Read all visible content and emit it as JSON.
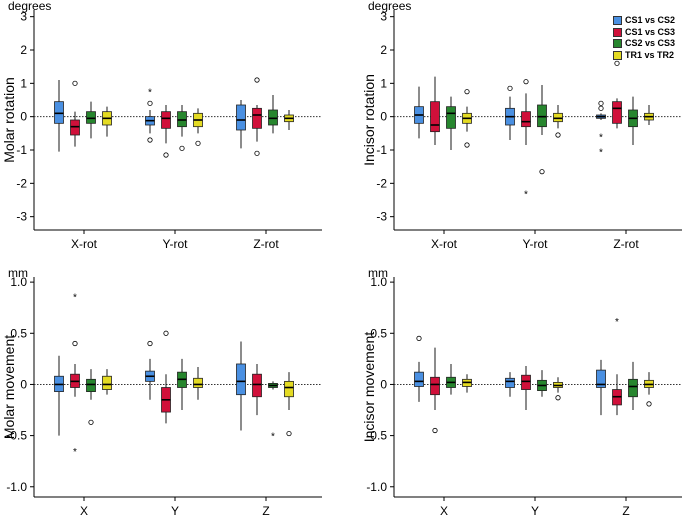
{
  "legend": [
    {
      "name": "CS1 vs CS2",
      "color": "#4a90e2"
    },
    {
      "name": "CS1 vs CS3",
      "color": "#d0103a"
    },
    {
      "name": "CS2 vs CS3",
      "color": "#27862e"
    },
    {
      "name": "TR1 vs TR2",
      "color": "#e4db23"
    }
  ],
  "chart_data": [
    {
      "type": "boxplot",
      "id": "molar-rotation",
      "unit": "degrees",
      "ylabel": "Molar rotation",
      "ylim": [
        -3.4,
        3.2
      ],
      "yticks": [
        -3,
        -2,
        -1,
        0,
        1,
        2,
        3
      ],
      "ytick_labels": [
        "-3",
        "-2",
        "-1",
        "0",
        "1",
        "2",
        "3"
      ],
      "categories": [
        "X-rot",
        "Y-rot",
        "Z-rot"
      ],
      "series": [
        {
          "name": "CS1 vs CS2",
          "boxes": [
            {
              "min": -1.05,
              "q1": -0.2,
              "median": 0.1,
              "q3": 0.45,
              "max": 1.1,
              "outliers": []
            },
            {
              "min": -0.5,
              "q1": -0.25,
              "median": -0.12,
              "q3": 0.0,
              "max": 0.2,
              "outliers": [
                {
                  "v": -0.7,
                  "s": "o"
                },
                {
                  "v": 0.4,
                  "s": "o"
                },
                {
                  "v": 0.75,
                  "s": "*"
                }
              ]
            },
            {
              "min": -0.95,
              "q1": -0.4,
              "median": -0.1,
              "q3": 0.35,
              "max": 0.5,
              "outliers": []
            }
          ]
        },
        {
          "name": "CS1 vs CS3",
          "boxes": [
            {
              "min": -0.9,
              "q1": -0.55,
              "median": -0.3,
              "q3": -0.1,
              "max": 0.15,
              "outliers": [
                {
                  "v": 1.0,
                  "s": "o"
                }
              ]
            },
            {
              "min": -0.8,
              "q1": -0.35,
              "median": -0.05,
              "q3": 0.15,
              "max": 0.35,
              "outliers": [
                {
                  "v": -1.15,
                  "s": "o"
                }
              ]
            },
            {
              "min": -0.75,
              "q1": -0.35,
              "median": 0.05,
              "q3": 0.25,
              "max": 0.35,
              "outliers": [
                {
                  "v": -1.1,
                  "s": "o"
                },
                {
                  "v": 1.1,
                  "s": "o"
                }
              ]
            }
          ]
        },
        {
          "name": "CS2 vs CS3",
          "boxes": [
            {
              "min": -0.65,
              "q1": -0.2,
              "median": -0.05,
              "q3": 0.15,
              "max": 0.45,
              "outliers": []
            },
            {
              "min": -0.6,
              "q1": -0.3,
              "median": -0.1,
              "q3": 0.15,
              "max": 0.35,
              "outliers": [
                {
                  "v": -0.95,
                  "s": "o"
                }
              ]
            },
            {
              "min": -0.5,
              "q1": -0.25,
              "median": -0.05,
              "q3": 0.2,
              "max": 0.65,
              "outliers": []
            }
          ]
        },
        {
          "name": "TR1 vs TR2",
          "boxes": [
            {
              "min": -0.6,
              "q1": -0.25,
              "median": -0.05,
              "q3": 0.15,
              "max": 0.3,
              "outliers": []
            },
            {
              "min": -0.5,
              "q1": -0.3,
              "median": -0.1,
              "q3": 0.1,
              "max": 0.25,
              "outliers": [
                {
                  "v": -0.8,
                  "s": "o"
                }
              ]
            },
            {
              "min": -0.4,
              "q1": -0.15,
              "median": -0.05,
              "q3": 0.05,
              "max": 0.2,
              "outliers": []
            }
          ]
        }
      ]
    },
    {
      "type": "boxplot",
      "id": "incisor-rotation",
      "unit": "degrees",
      "ylabel": "Incisor rotation",
      "ylim": [
        -3.4,
        3.2
      ],
      "yticks": [
        -3,
        -2,
        -1,
        0,
        1,
        2,
        3
      ],
      "ytick_labels": [
        "-3",
        "-2",
        "-1",
        "0",
        "1",
        "2",
        "3"
      ],
      "categories": [
        "X-rot",
        "Y-rot",
        "Z-rot"
      ],
      "series": [
        {
          "name": "CS1 vs CS2",
          "boxes": [
            {
              "min": -0.65,
              "q1": -0.2,
              "median": 0.05,
              "q3": 0.3,
              "max": 0.9,
              "outliers": []
            },
            {
              "min": -0.7,
              "q1": -0.25,
              "median": 0.0,
              "q3": 0.25,
              "max": 0.6,
              "outliers": [
                {
                  "v": 0.85,
                  "s": "o"
                }
              ]
            },
            {
              "min": -0.1,
              "q1": -0.05,
              "median": 0.0,
              "q3": 0.05,
              "max": 0.1,
              "outliers": [
                {
                  "v": 0.25,
                  "s": "o"
                },
                {
                  "v": 0.4,
                  "s": "o"
                },
                {
                  "v": -0.6,
                  "s": "*"
                },
                {
                  "v": -1.05,
                  "s": "*"
                }
              ]
            }
          ]
        },
        {
          "name": "CS1 vs CS3",
          "boxes": [
            {
              "min": -0.85,
              "q1": -0.45,
              "median": -0.25,
              "q3": 0.45,
              "max": 1.2,
              "outliers": []
            },
            {
              "min": -0.85,
              "q1": -0.3,
              "median": -0.15,
              "q3": 0.15,
              "max": 0.7,
              "outliers": [
                {
                  "v": 1.05,
                  "s": "o"
                },
                {
                  "v": -2.3,
                  "s": "*"
                }
              ]
            },
            {
              "min": -0.35,
              "q1": -0.2,
              "median": 0.25,
              "q3": 0.45,
              "max": 0.55,
              "outliers": [
                {
                  "v": 1.6,
                  "s": "o"
                }
              ]
            }
          ]
        },
        {
          "name": "CS2 vs CS3",
          "boxes": [
            {
              "min": -1.0,
              "q1": -0.35,
              "median": 0.1,
              "q3": 0.3,
              "max": 0.6,
              "outliers": []
            },
            {
              "min": -0.55,
              "q1": -0.3,
              "median": 0.0,
              "q3": 0.35,
              "max": 0.95,
              "outliers": [
                {
                  "v": -1.65,
                  "s": "o"
                }
              ]
            },
            {
              "min": -0.85,
              "q1": -0.3,
              "median": -0.05,
              "q3": 0.2,
              "max": 0.6,
              "outliers": []
            }
          ]
        },
        {
          "name": "TR1 vs TR2",
          "boxes": [
            {
              "min": -0.45,
              "q1": -0.2,
              "median": -0.05,
              "q3": 0.1,
              "max": 0.3,
              "outliers": [
                {
                  "v": 0.75,
                  "s": "o"
                },
                {
                  "v": -0.85,
                  "s": "o"
                }
              ]
            },
            {
              "min": -0.35,
              "q1": -0.15,
              "median": -0.05,
              "q3": 0.1,
              "max": 0.35,
              "outliers": [
                {
                  "v": -0.55,
                  "s": "o"
                }
              ]
            },
            {
              "min": -0.25,
              "q1": -0.1,
              "median": 0.0,
              "q3": 0.1,
              "max": 0.35,
              "outliers": []
            }
          ]
        }
      ]
    },
    {
      "type": "boxplot",
      "id": "molar-movement",
      "unit": "mm",
      "ylabel": "Molar movement",
      "ylim": [
        -1.1,
        1.05
      ],
      "yticks": [
        -1,
        -0.5,
        0,
        0.5,
        1
      ],
      "ytick_labels": [
        "-1.0",
        "-0.5",
        "0",
        "0.5",
        "1.0"
      ],
      "categories": [
        "X",
        "Y",
        "Z"
      ],
      "series": [
        {
          "name": "CS1 vs CS2",
          "boxes": [
            {
              "min": -0.5,
              "q1": -0.07,
              "median": 0.0,
              "q3": 0.08,
              "max": 0.28,
              "outliers": []
            },
            {
              "min": -0.15,
              "q1": 0.03,
              "median": 0.08,
              "q3": 0.13,
              "max": 0.25,
              "outliers": [
                {
                  "v": 0.4,
                  "s": "o"
                }
              ]
            },
            {
              "min": -0.45,
              "q1": -0.1,
              "median": 0.03,
              "q3": 0.2,
              "max": 0.42,
              "outliers": []
            }
          ]
        },
        {
          "name": "CS1 vs CS3",
          "boxes": [
            {
              "min": -0.12,
              "q1": -0.03,
              "median": 0.03,
              "q3": 0.1,
              "max": 0.2,
              "outliers": [
                {
                  "v": 0.4,
                  "s": "o"
                },
                {
                  "v": 0.86,
                  "s": "*"
                },
                {
                  "v": -0.65,
                  "s": "*"
                }
              ]
            },
            {
              "min": -0.38,
              "q1": -0.27,
              "median": -0.15,
              "q3": -0.03,
              "max": 0.1,
              "outliers": [
                {
                  "v": 0.5,
                  "s": "o"
                }
              ]
            },
            {
              "min": -0.3,
              "q1": -0.12,
              "median": 0.0,
              "q3": 0.1,
              "max": 0.2,
              "outliers": []
            }
          ]
        },
        {
          "name": "CS2 vs CS3",
          "boxes": [
            {
              "min": -0.15,
              "q1": -0.07,
              "median": 0.0,
              "q3": 0.05,
              "max": 0.15,
              "outliers": [
                {
                  "v": -0.37,
                  "s": "o"
                }
              ]
            },
            {
              "min": -0.25,
              "q1": -0.03,
              "median": 0.05,
              "q3": 0.12,
              "max": 0.25,
              "outliers": []
            },
            {
              "min": -0.05,
              "q1": -0.03,
              "median": -0.01,
              "q3": 0.01,
              "max": 0.03,
              "outliers": [
                {
                  "v": -0.5,
                  "s": "*"
                }
              ]
            }
          ]
        },
        {
          "name": "TR1 vs TR2",
          "boxes": [
            {
              "min": -0.1,
              "q1": -0.05,
              "median": 0.0,
              "q3": 0.08,
              "max": 0.15,
              "outliers": []
            },
            {
              "min": -0.15,
              "q1": -0.03,
              "median": 0.0,
              "q3": 0.06,
              "max": 0.17,
              "outliers": []
            },
            {
              "min": -0.25,
              "q1": -0.12,
              "median": -0.03,
              "q3": 0.03,
              "max": 0.12,
              "outliers": [
                {
                  "v": -0.48,
                  "s": "o"
                }
              ]
            }
          ]
        }
      ]
    },
    {
      "type": "boxplot",
      "id": "incisor-movement",
      "unit": "mm",
      "ylabel": "Incisor movement",
      "ylim": [
        -1.1,
        1.05
      ],
      "yticks": [
        -1,
        -0.5,
        0,
        0.5,
        1
      ],
      "ytick_labels": [
        "-1.0",
        "-0.5",
        "0",
        "0.5",
        "1.0"
      ],
      "categories": [
        "X",
        "Y",
        "Z"
      ],
      "series": [
        {
          "name": "CS1 vs CS2",
          "boxes": [
            {
              "min": -0.17,
              "q1": -0.02,
              "median": 0.03,
              "q3": 0.12,
              "max": 0.22,
              "outliers": [
                {
                  "v": 0.45,
                  "s": "o"
                }
              ]
            },
            {
              "min": -0.12,
              "q1": -0.03,
              "median": 0.03,
              "q3": 0.06,
              "max": 0.12,
              "outliers": []
            },
            {
              "min": -0.3,
              "q1": -0.03,
              "median": 0.0,
              "q3": 0.14,
              "max": 0.24,
              "outliers": []
            }
          ]
        },
        {
          "name": "CS1 vs CS3",
          "boxes": [
            {
              "min": -0.25,
              "q1": -0.1,
              "median": 0.0,
              "q3": 0.07,
              "max": 0.36,
              "outliers": [
                {
                  "v": -0.45,
                  "s": "o"
                }
              ]
            },
            {
              "min": -0.25,
              "q1": -0.05,
              "median": 0.03,
              "q3": 0.09,
              "max": 0.18,
              "outliers": []
            },
            {
              "min": -0.3,
              "q1": -0.2,
              "median": -0.12,
              "q3": -0.05,
              "max": 0.1,
              "outliers": [
                {
                  "v": 0.62,
                  "s": "*"
                }
              ]
            }
          ]
        },
        {
          "name": "CS2 vs CS3",
          "boxes": [
            {
              "min": -0.1,
              "q1": -0.03,
              "median": 0.02,
              "q3": 0.07,
              "max": 0.2,
              "outliers": []
            },
            {
              "min": -0.12,
              "q1": -0.06,
              "median": -0.01,
              "q3": 0.04,
              "max": 0.14,
              "outliers": []
            },
            {
              "min": -0.25,
              "q1": -0.12,
              "median": -0.02,
              "q3": 0.05,
              "max": 0.22,
              "outliers": []
            }
          ]
        },
        {
          "name": "TR1 vs TR2",
          "boxes": [
            {
              "min": -0.08,
              "q1": -0.02,
              "median": 0.02,
              "q3": 0.05,
              "max": 0.1,
              "outliers": []
            },
            {
              "min": -0.08,
              "q1": -0.03,
              "median": -0.01,
              "q3": 0.02,
              "max": 0.07,
              "outliers": [
                {
                  "v": -0.13,
                  "s": "o"
                }
              ]
            },
            {
              "min": -0.1,
              "q1": -0.03,
              "median": 0.0,
              "q3": 0.04,
              "max": 0.12,
              "outliers": [
                {
                  "v": -0.19,
                  "s": "o"
                }
              ]
            }
          ]
        }
      ]
    }
  ]
}
